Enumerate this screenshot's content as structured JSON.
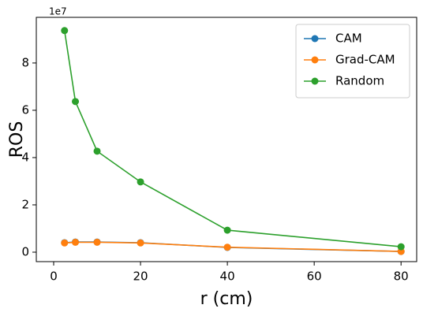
{
  "chart_data": {
    "type": "line",
    "xlabel": "r (cm)",
    "ylabel": "ROS",
    "y_offset_label": "1e7",
    "x": [
      2.5,
      5,
      10,
      20,
      40,
      80
    ],
    "series": [
      {
        "name": "CAM",
        "color": "#1f77b4",
        "values": [
          0.4,
          0.43,
          0.43,
          0.4,
          0.2,
          0.03
        ]
      },
      {
        "name": "Grad-CAM",
        "color": "#ff7f0e",
        "values": [
          0.39,
          0.42,
          0.42,
          0.39,
          0.21,
          0.03
        ]
      },
      {
        "name": "Random",
        "color": "#2ca02c",
        "values": [
          9.37,
          6.37,
          4.27,
          2.97,
          0.93,
          0.23
        ]
      }
    ],
    "xlim": [
      -4,
      83.6
    ],
    "xticks": [
      0,
      20,
      40,
      60,
      80
    ],
    "ylim": [
      -0.4,
      9.93
    ],
    "yticks": [
      0,
      2,
      4,
      6,
      8
    ],
    "legend": "upper right",
    "grid": false
  }
}
